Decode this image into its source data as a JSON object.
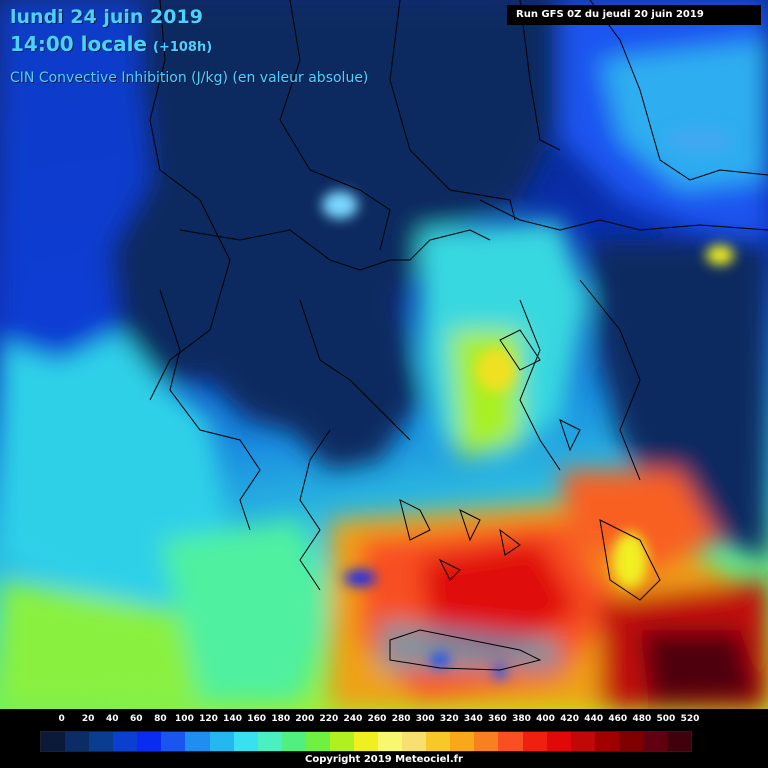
{
  "header": {
    "date_line": "lundi 24 juin 2019",
    "time_line": "14:00 locale",
    "lead_time": "(+108h)",
    "parameter": "CIN Convective Inhibition (J/kg) (en valeur absolue)"
  },
  "run_info": "Run GFS 0Z du jeudi 20 juin 2019",
  "legend": {
    "ticks": [
      "0",
      "20",
      "40",
      "60",
      "80",
      "100",
      "120",
      "140",
      "160",
      "180",
      "200",
      "220",
      "240",
      "260",
      "280",
      "300",
      "320",
      "340",
      "360",
      "380",
      "400",
      "420",
      "440",
      "460",
      "480",
      "500",
      "520"
    ],
    "colors": [
      "#0b1a3a",
      "#0c2c66",
      "#0a3d8f",
      "#0a3fd0",
      "#0a2bf0",
      "#1a55f0",
      "#1f8ef0",
      "#25b8f0",
      "#38e0f0",
      "#4af0c0",
      "#50f080",
      "#70f040",
      "#b0f020",
      "#f0f020",
      "#f8f870",
      "#f8e070",
      "#f8c828",
      "#f8a818",
      "#f88020",
      "#f85020",
      "#f02010",
      "#e00808",
      "#c00808",
      "#a00000",
      "#800000",
      "#600010",
      "#40000c"
    ],
    "unit": "J/kg"
  },
  "copyright": "Copyright 2019 Meteociel.fr"
}
